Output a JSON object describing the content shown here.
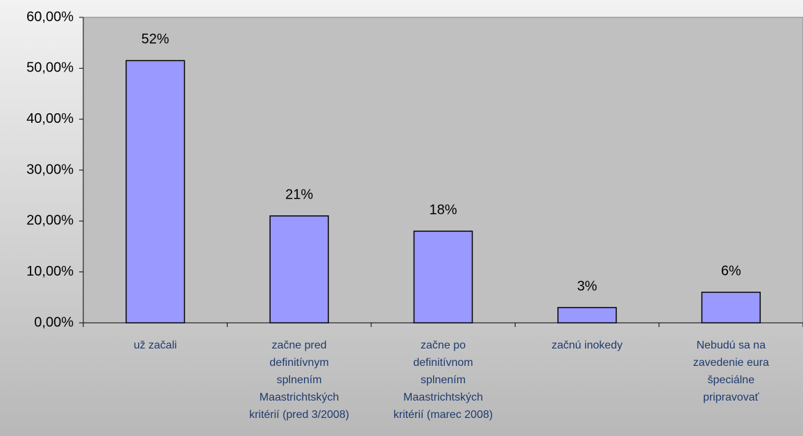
{
  "chart_data": {
    "type": "bar",
    "categories": [
      "už začali",
      "začne pred\ndefinitívnym\nsplnením\nMaastrichtských\nkritérií (pred 3/2008)",
      "začne po\ndefinitívnom\nsplnením\nMaastrichtských\nkritérií (marec 2008)",
      "začnú inokedy",
      "Nebudú sa na\nzavedenie eura\nšpeciálne\npripravovať"
    ],
    "values": [
      51.5,
      21,
      18,
      3,
      6
    ],
    "value_labels": [
      "52%",
      "21%",
      "18%",
      "3%",
      "6%"
    ],
    "color": "#9999ff",
    "ylim": [
      0,
      60
    ],
    "yticks": [
      {
        "value": 0,
        "label": "0,00%"
      },
      {
        "value": 10,
        "label": "10,00%"
      },
      {
        "value": 20,
        "label": "20,00%"
      },
      {
        "value": 30,
        "label": "30,00%"
      },
      {
        "value": 40,
        "label": "40,00%"
      },
      {
        "value": 50,
        "label": "50,00%"
      },
      {
        "value": 60,
        "label": "60,00%"
      }
    ],
    "grid": false
  }
}
